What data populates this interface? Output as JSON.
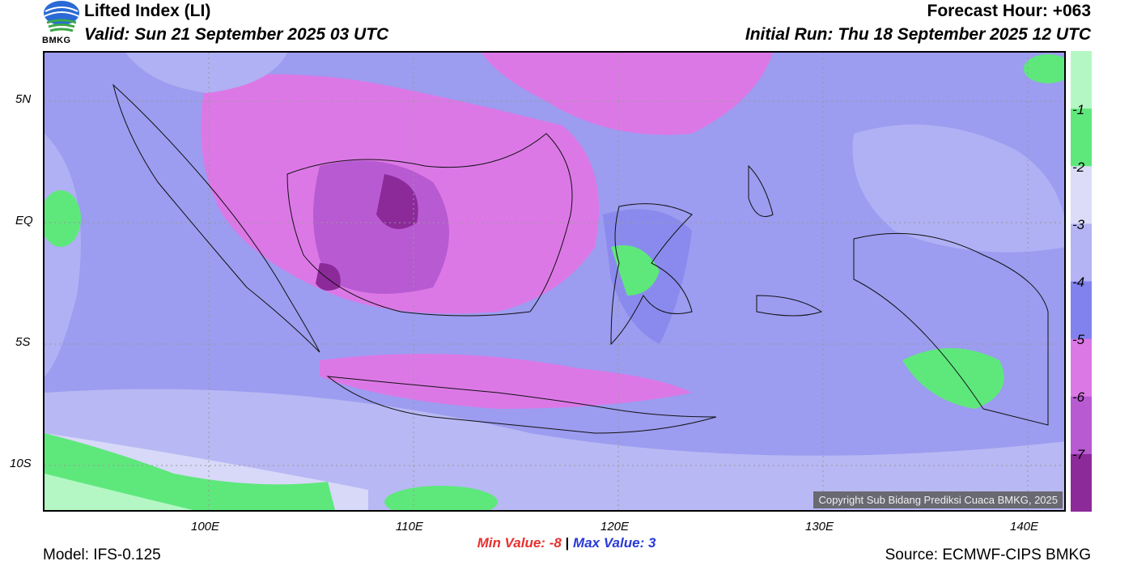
{
  "header": {
    "title": "Lifted Index (LI)",
    "valid": "Valid: Sun 21 September 2025 03 UTC",
    "forecast_hour": "Forecast Hour: +063",
    "initial_run": "Initial Run: Thu 18 September 2025 12 UTC",
    "logo_text": "BMKG"
  },
  "axes": {
    "lat_labels": [
      "5N",
      "EQ",
      "5S",
      "10S"
    ],
    "lon_labels": [
      "100E",
      "110E",
      "120E",
      "130E",
      "140E"
    ]
  },
  "colorbar": {
    "labels": [
      "-1",
      "-2",
      "-3",
      "-4",
      "-5",
      "-6",
      "-7"
    ],
    "colors": [
      "#b4f7c4",
      "#5ee87c",
      "#dcdcf8",
      "#b4b4f4",
      "#8282ee",
      "#dc78e6",
      "#b85ad2",
      "#8c2a9a"
    ]
  },
  "stats": {
    "min_label": "Min Value:",
    "min_value": "-8",
    "separator": "|",
    "max_label": "Max Value:",
    "max_value": "3",
    "min_color": "#e83030",
    "max_color": "#2a3ad8"
  },
  "footer": {
    "model": "Model: IFS-0.125",
    "source": "Source: ECMWF-CIPS BMKG",
    "copyright": "Copyright Sub Bidang Prediksi Cuaca BMKG, 2025"
  }
}
